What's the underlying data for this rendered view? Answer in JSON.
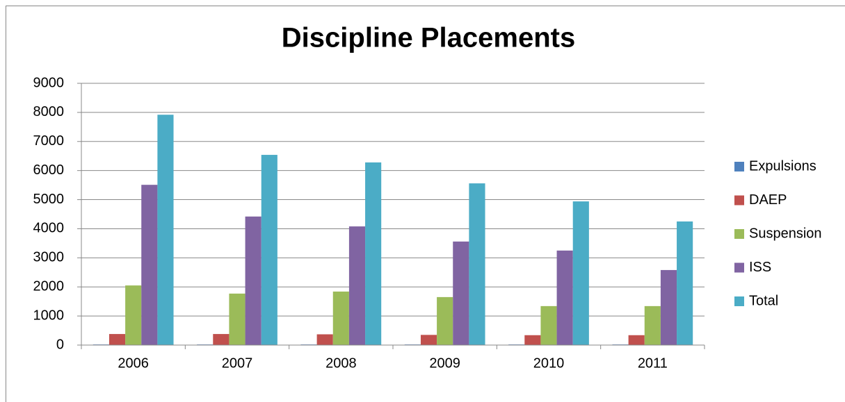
{
  "chart_data": {
    "type": "bar",
    "title": "Discipline Placements",
    "categories": [
      "2006",
      "2007",
      "2008",
      "2009",
      "2010",
      "2011"
    ],
    "series": [
      {
        "name": "Expulsions",
        "color": "#4f81bd",
        "values": [
          20,
          20,
          20,
          20,
          20,
          20
        ]
      },
      {
        "name": "DAEP",
        "color": "#c0504d",
        "values": [
          380,
          380,
          370,
          350,
          340,
          340
        ]
      },
      {
        "name": "Suspension",
        "color": "#9bbb59",
        "values": [
          2050,
          1770,
          1840,
          1650,
          1340,
          1340
        ]
      },
      {
        "name": "ISS",
        "color": "#8064a2",
        "values": [
          5510,
          4420,
          4080,
          3560,
          3250,
          2580
        ]
      },
      {
        "name": "Total",
        "color": "#4bacc6",
        "values": [
          7920,
          6540,
          6280,
          5560,
          4940,
          4250
        ]
      }
    ],
    "ylim": [
      0,
      9000
    ],
    "yticks": [
      0,
      1000,
      2000,
      3000,
      4000,
      5000,
      6000,
      7000,
      8000,
      9000
    ],
    "grid": true,
    "legend": "right"
  }
}
